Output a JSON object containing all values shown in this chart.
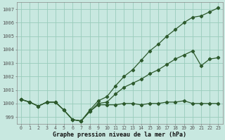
{
  "xlabel": "Graphe pression niveau de la mer (hPa)",
  "ylabel": "",
  "xlim": [
    -0.5,
    23.5
  ],
  "ylim": [
    998.5,
    1007.5
  ],
  "yticks": [
    999,
    1000,
    1001,
    1002,
    1003,
    1004,
    1005,
    1006,
    1007
  ],
  "xticks": [
    0,
    1,
    2,
    3,
    4,
    5,
    6,
    7,
    8,
    9,
    10,
    11,
    12,
    13,
    14,
    15,
    16,
    17,
    18,
    19,
    20,
    21,
    22,
    23
  ],
  "bg_color": "#c8e8e0",
  "grid_color": "#99ccbb",
  "line_color": "#2d5a2d",
  "line1_flat": [
    1000.3,
    1000.1,
    999.8,
    1000.1,
    1000.1,
    999.5,
    998.8,
    998.7,
    999.4,
    999.9,
    999.9,
    999.9,
    1000.0,
    1000.0,
    999.9,
    1000.0,
    1000.0,
    1000.1,
    1000.1,
    1000.2,
    1000.0,
    1000.0,
    1000.0,
    1000.0
  ],
  "line2_steep": [
    1000.3,
    1000.1,
    999.8,
    1000.1,
    1000.1,
    999.5,
    998.8,
    998.7,
    999.5,
    1000.2,
    1000.5,
    1001.3,
    1002.0,
    1002.5,
    1003.2,
    1003.9,
    1004.4,
    1005.0,
    1005.5,
    1006.0,
    1006.4,
    1006.5,
    1006.8,
    1007.1
  ],
  "line3_mid": [
    1000.3,
    1000.1,
    999.8,
    1000.1,
    1000.1,
    999.5,
    998.8,
    998.7,
    999.4,
    1000.0,
    1000.1,
    1000.7,
    1001.2,
    1001.5,
    1001.8,
    1002.2,
    1002.5,
    1002.9,
    1003.3,
    1003.6,
    1003.9,
    1002.8,
    1003.3,
    1003.4
  ]
}
